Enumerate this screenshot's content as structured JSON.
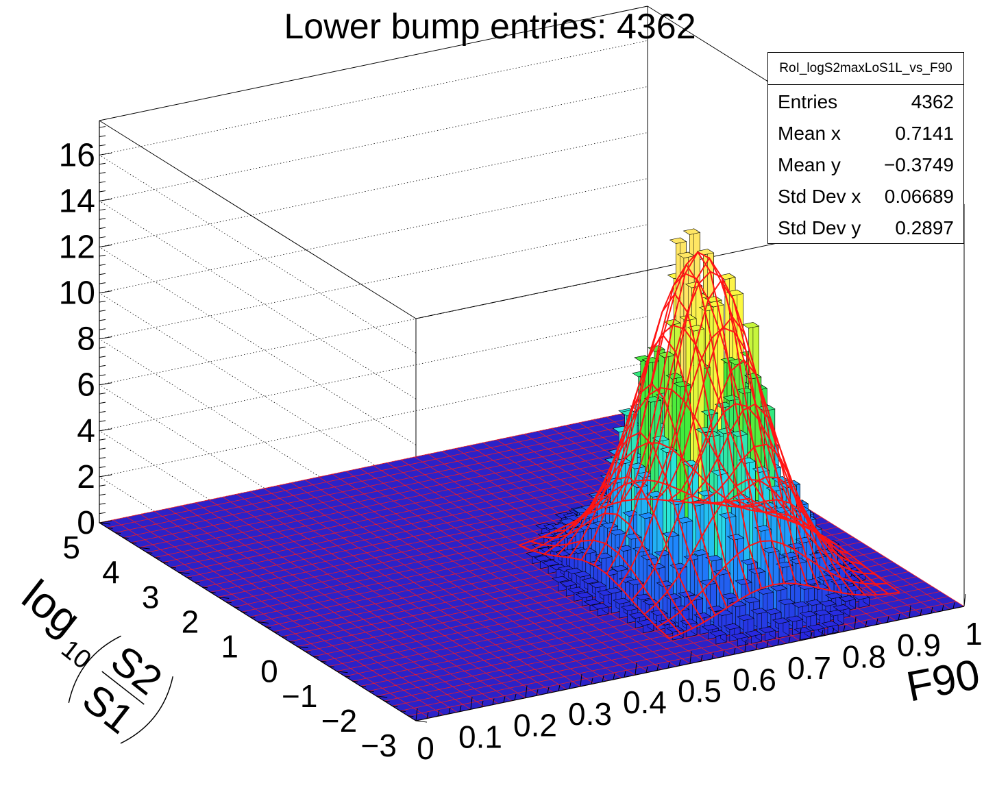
{
  "chart_data": {
    "type": "lego-3d-histogram",
    "title": "Lower bump entries: 4362",
    "xlabel": "F90",
    "ylabel": "log10(S2/S1)",
    "ylabel_parts": {
      "log": "log",
      "sub": "10",
      "num": "S2",
      "den": "S1"
    },
    "x_range": [
      0,
      1
    ],
    "y_range": [
      -3,
      5
    ],
    "z_range": [
      0,
      17.5
    ],
    "x_ticks": [
      "0",
      "0.1",
      "0.2",
      "0.3",
      "0.4",
      "0.5",
      "0.6",
      "0.7",
      "0.8",
      "0.9",
      "1"
    ],
    "y_ticks": [
      "−3",
      "−2",
      "−1",
      "0",
      "1",
      "2",
      "3",
      "4",
      "5"
    ],
    "z_ticks": [
      "0",
      "2",
      "4",
      "6",
      "8",
      "10",
      "12",
      "14",
      "16"
    ],
    "peak": {
      "x": 0.71,
      "y": -0.37,
      "height": 14.0
    },
    "fit_function": "2D Gaussian (red wireframe surface)",
    "stats": {
      "name": "RoI_logS2maxLoS1L_vs_F90",
      "rows": [
        {
          "label": "Entries",
          "value": "4362"
        },
        {
          "label": "Mean x",
          "value": "0.7141"
        },
        {
          "label": "Mean y",
          "value": "−0.3749"
        },
        {
          "label": "Std Dev x",
          "value": "0.06689"
        },
        {
          "label": "Std Dev y",
          "value": "0.2897"
        }
      ]
    },
    "colors": {
      "floor": "#2b22c8",
      "grid_lines": "#ff1a1a",
      "frame": "#000000",
      "bar_outline": "#000000"
    }
  }
}
